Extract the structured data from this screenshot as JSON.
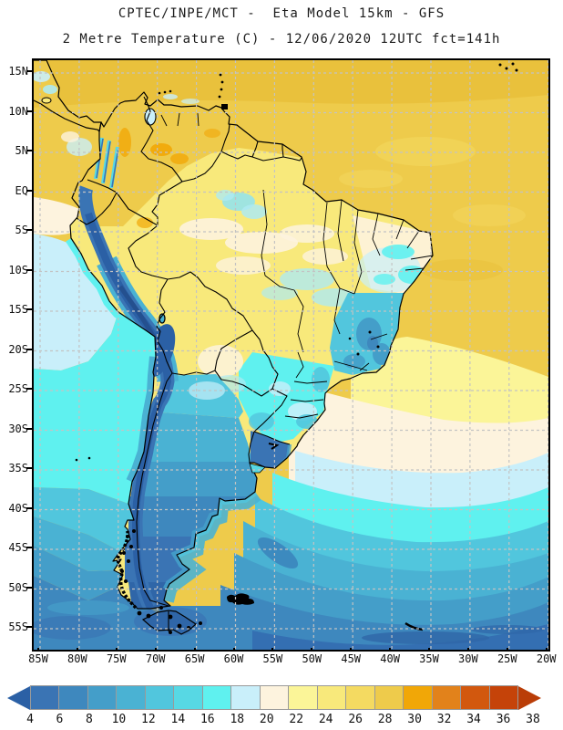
{
  "header": {
    "title_line1": "CPTEC/INPE/MCT -  Eta Model 15km - GFS",
    "title_line2": "2 Metre Temperature (C) - 12/06/2020 12UTC fct=141h"
  },
  "map": {
    "lat_labels": [
      "15N",
      "10N",
      "5N",
      "EQ",
      "5S",
      "10S",
      "15S",
      "20S",
      "25S",
      "30S",
      "35S",
      "40S",
      "45S",
      "50S",
      "55S"
    ],
    "lon_labels": [
      "85W",
      "80W",
      "75W",
      "70W",
      "65W",
      "60W",
      "55W",
      "50W",
      "45W",
      "40W",
      "35W",
      "30W",
      "25W",
      "20W"
    ]
  },
  "colorbar": {
    "tick_labels": [
      "4",
      "6",
      "8",
      "10",
      "12",
      "14",
      "16",
      "18",
      "20",
      "22",
      "24",
      "26",
      "28",
      "30",
      "32",
      "34",
      "36",
      "38"
    ],
    "cell_colors": [
      "#3a74b4",
      "#3e88be",
      "#449ec9",
      "#4ab2d3",
      "#51c6dd",
      "#57d8e4",
      "#5ff1ef",
      "#c9effa",
      "#fdf3de",
      "#fbf598",
      "#f8e97b",
      "#f4da61",
      "#eecb4b",
      "#f1a707",
      "#e2821b",
      "#d2580e",
      "#c54309"
    ],
    "arrow_left_color": "#2b60a5",
    "arrow_right_color": "#ba3d07"
  }
}
